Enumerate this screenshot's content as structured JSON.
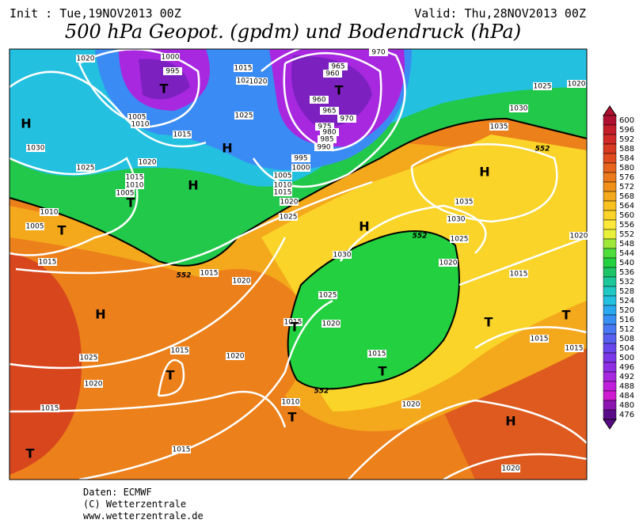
{
  "header": {
    "init": "Init : Tue,19NOV2013 00Z",
    "valid": "Valid: Thu,28NOV2013 00Z",
    "title": "500 hPa Geopot. (gpdm) und Bodendruck (hPa)"
  },
  "legend": {
    "levels": [
      600,
      596,
      592,
      588,
      584,
      580,
      576,
      572,
      568,
      564,
      560,
      556,
      552,
      548,
      544,
      540,
      536,
      532,
      528,
      524,
      520,
      516,
      512,
      508,
      504,
      500,
      496,
      492,
      488,
      484,
      480,
      476
    ],
    "colors": [
      "#b01030",
      "#c41e2a",
      "#d02a26",
      "#d83a22",
      "#e04c1e",
      "#e8641c",
      "#ec7a1a",
      "#f09018",
      "#f4a81c",
      "#f8c020",
      "#fad428",
      "#fce83a",
      "#e8f03c",
      "#9ee83a",
      "#4ede3c",
      "#22d040",
      "#1cc468",
      "#1cc89a",
      "#20c8c4",
      "#24c0e0",
      "#2aa8f0",
      "#3890f4",
      "#4878f4",
      "#5860f0",
      "#6848ec",
      "#7c38e8",
      "#9030e4",
      "#a828e0",
      "#c020dc",
      "#d01cd0",
      "#8c14b0",
      "#5a0c88"
    ]
  },
  "map": {
    "isobars": [
      1020,
      1000,
      995,
      1005,
      1010,
      1015,
      1030,
      1025,
      1020,
      1015,
      1010,
      1005,
      1010,
      1005,
      1015,
      1015,
      1020,
      1020,
      1025,
      965,
      960,
      970,
      960,
      965,
      970,
      975,
      980,
      985,
      990,
      995,
      1000,
      1005,
      1010,
      1015,
      1020,
      1025,
      1030,
      1025,
      1020,
      1035,
      1035,
      1030,
      1025,
      1020,
      1030,
      1020,
      1015,
      1025,
      1020,
      1015,
      1015,
      1020,
      1015,
      1015,
      1015,
      1025,
      1015,
      1020,
      1020,
      1015,
      1010,
      1020,
      1015,
      1020
    ],
    "contour_552": [
      552,
      552,
      552,
      552
    ],
    "centers": [
      "H",
      "H",
      "H",
      "H",
      "H",
      "H",
      "H",
      "T",
      "T",
      "T",
      "T",
      "T",
      "T",
      "T",
      "T",
      "T",
      "T",
      "T"
    ]
  },
  "footer": [
    "Daten: ECMWF",
    "(C) Wetterzentrale",
    "www.wetterzentrale.de"
  ]
}
